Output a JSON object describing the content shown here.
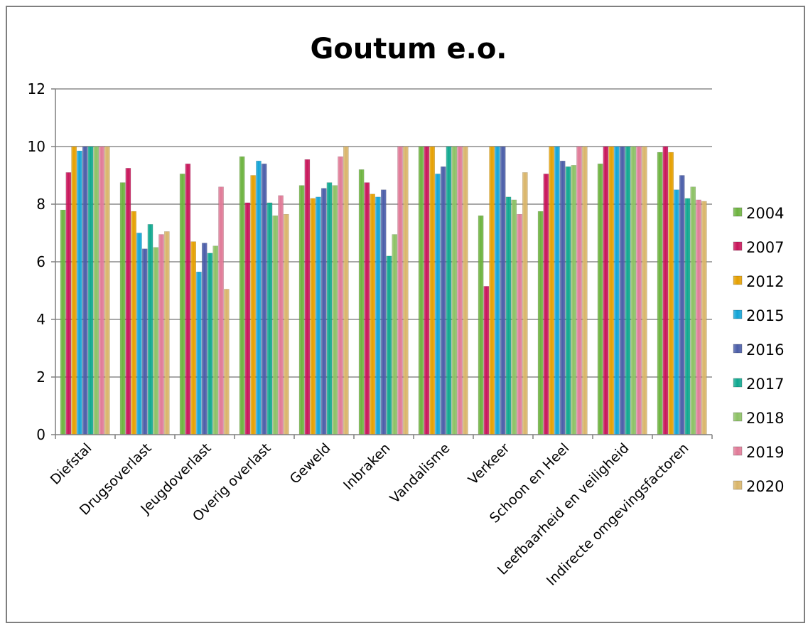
{
  "chart_data": {
    "type": "bar",
    "title": "Goutum e.o.",
    "xlabel": "",
    "ylabel": "",
    "ylim": [
      0,
      12
    ],
    "yticks": [
      0,
      2,
      4,
      6,
      8,
      10,
      12
    ],
    "grid": true,
    "legend_position": "right",
    "categories": [
      "Diefstal",
      "Drugsoverlast",
      "Jeugdoverlast",
      "Overig overlast",
      "Geweld",
      "Inbraken",
      "Vandalisme",
      "Verkeer",
      "Schoon en Heel",
      "Leefbaarheid en veiligheid",
      "Indirecte omgevingsfactoren"
    ],
    "series": [
      {
        "name": "2004",
        "color": "#6db33f",
        "values": [
          7.8,
          8.75,
          9.05,
          9.65,
          8.65,
          9.2,
          10.0,
          7.6,
          7.75,
          9.4,
          9.8
        ]
      },
      {
        "name": "2007",
        "color": "#c8155a",
        "values": [
          9.1,
          9.25,
          9.4,
          8.05,
          9.55,
          8.75,
          10.0,
          5.15,
          9.05,
          10.0,
          10.0
        ]
      },
      {
        "name": "2012",
        "color": "#e5a000",
        "values": [
          10.0,
          7.75,
          6.7,
          9.0,
          8.2,
          8.35,
          10.0,
          10.0,
          10.0,
          10.0,
          9.8
        ]
      },
      {
        "name": "2015",
        "color": "#12a4d6",
        "values": [
          9.85,
          7.0,
          5.65,
          9.5,
          8.25,
          8.25,
          9.05,
          10.0,
          10.0,
          10.0,
          8.5
        ]
      },
      {
        "name": "2016",
        "color": "#4a5da8",
        "values": [
          10.0,
          6.45,
          6.65,
          9.4,
          8.55,
          8.5,
          9.3,
          10.0,
          9.5,
          10.0,
          9.0
        ]
      },
      {
        "name": "2017",
        "color": "#0fa88f",
        "values": [
          10.0,
          7.3,
          6.3,
          8.05,
          8.75,
          6.2,
          10.0,
          8.25,
          9.3,
          10.0,
          8.2
        ]
      },
      {
        "name": "2018",
        "color": "#8cc164",
        "values": [
          10.0,
          6.5,
          6.55,
          7.6,
          8.65,
          6.95,
          10.0,
          8.15,
          9.35,
          10.0,
          8.6
        ]
      },
      {
        "name": "2019",
        "color": "#e07a97",
        "values": [
          10.0,
          6.95,
          8.6,
          8.3,
          9.65,
          10.0,
          10.0,
          7.65,
          10.0,
          10.0,
          8.15
        ]
      },
      {
        "name": "2020",
        "color": "#d9b56a",
        "values": [
          10.0,
          7.05,
          5.05,
          7.65,
          10.0,
          10.0,
          10.0,
          9.1,
          10.0,
          10.0,
          8.1
        ]
      }
    ]
  }
}
